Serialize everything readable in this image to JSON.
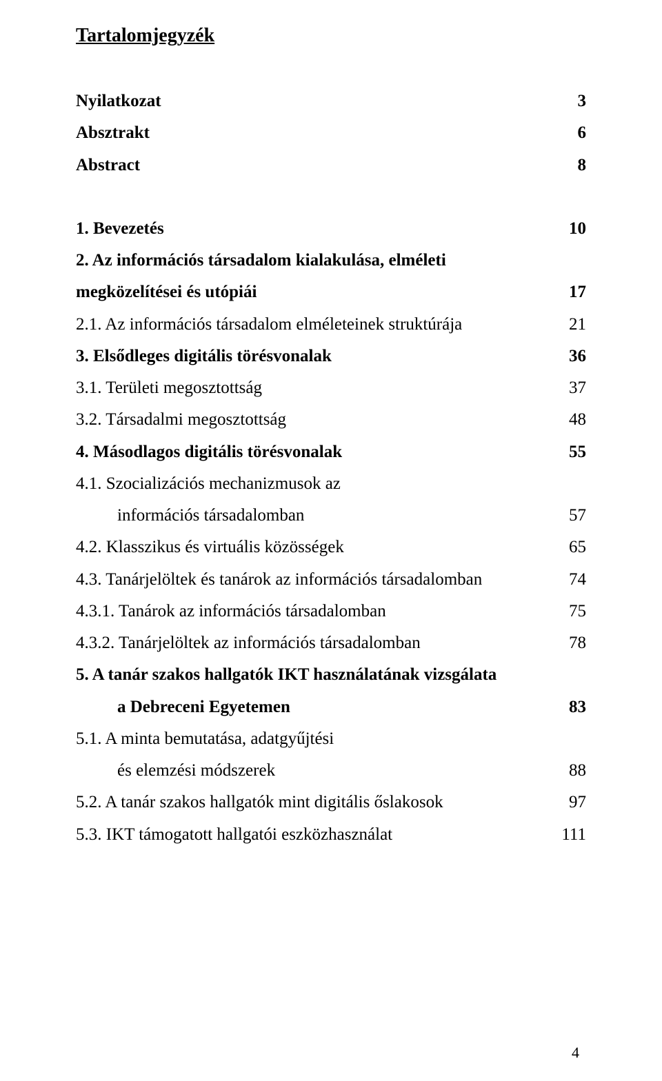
{
  "title": "Tartalomjegyzék",
  "page_number": "4",
  "toc": [
    {
      "label": "Nyilatkozat",
      "page": "3",
      "bold": true,
      "indent": 0,
      "gap_before": false
    },
    {
      "label": "Absztrakt",
      "page": "6",
      "bold": true,
      "indent": 0,
      "gap_before": false
    },
    {
      "label": "Abstract",
      "page": "8",
      "bold": true,
      "indent": 0,
      "gap_before": false
    },
    {
      "label": "1. Bevezetés",
      "page": "10",
      "bold": true,
      "indent": 0,
      "gap_before": true
    },
    {
      "label": "2. Az információs társadalom kialakulása, elméleti",
      "page": "",
      "bold": true,
      "indent": 0,
      "gap_before": false
    },
    {
      "label": "megközelítései és utópiái",
      "page": "17",
      "bold": true,
      "indent": 0,
      "gap_before": false
    },
    {
      "label": "2.1. Az információs társadalom elméleteinek struktúrája",
      "page": "21",
      "bold": false,
      "indent": 0,
      "gap_before": false
    },
    {
      "label": "3. Elsődleges digitális törésvonalak",
      "page": "36",
      "bold": true,
      "indent": 0,
      "gap_before": false
    },
    {
      "label": "3.1. Területi megosztottság",
      "page": "37",
      "bold": false,
      "indent": 0,
      "gap_before": false
    },
    {
      "label": "3.2. Társadalmi megosztottság",
      "page": "48",
      "bold": false,
      "indent": 0,
      "gap_before": false
    },
    {
      "label": "4. Másodlagos digitális törésvonalak",
      "page": "55",
      "bold": true,
      "indent": 0,
      "gap_before": false
    },
    {
      "label": "4.1. Szocializációs mechanizmusok az",
      "page": "",
      "bold": false,
      "indent": 0,
      "gap_before": false
    },
    {
      "label": "információs társadalomban",
      "page": "57",
      "bold": false,
      "indent": 1,
      "gap_before": false
    },
    {
      "label": "4.2. Klasszikus és virtuális közösségek",
      "page": "65",
      "bold": false,
      "indent": 0,
      "gap_before": false
    },
    {
      "label": "4.3. Tanárjelöltek és tanárok az információs társadalomban",
      "page": "74",
      "bold": false,
      "indent": 0,
      "gap_before": false
    },
    {
      "label": "4.3.1. Tanárok az információs társadalomban",
      "page": "75",
      "bold": false,
      "indent": 0,
      "gap_before": false
    },
    {
      "label": "4.3.2. Tanárjelöltek az információs társadalomban",
      "page": "78",
      "bold": false,
      "indent": 0,
      "gap_before": false
    },
    {
      "label": "5. A tanár szakos hallgatók IKT használatának vizsgálata",
      "page": "",
      "bold": true,
      "indent": 0,
      "gap_before": false
    },
    {
      "label": "a Debreceni Egyetemen",
      "page": "83",
      "bold": true,
      "indent": 1,
      "gap_before": false
    },
    {
      "label": "5.1. A minta bemutatása, adatgyűjtési",
      "page": "",
      "bold": false,
      "indent": 0,
      "gap_before": false
    },
    {
      "label": "és elemzési módszerek",
      "page": "88",
      "bold": false,
      "indent": 1,
      "gap_before": false
    },
    {
      "label": "5.2. A tanár szakos hallgatók mint digitális őslakosok",
      "page": "97",
      "bold": false,
      "indent": 0,
      "gap_before": false
    },
    {
      "label": "5.3. IKT támogatott hallgatói eszközhasználat",
      "page": "111",
      "bold": false,
      "indent": 0,
      "gap_before": false
    }
  ]
}
